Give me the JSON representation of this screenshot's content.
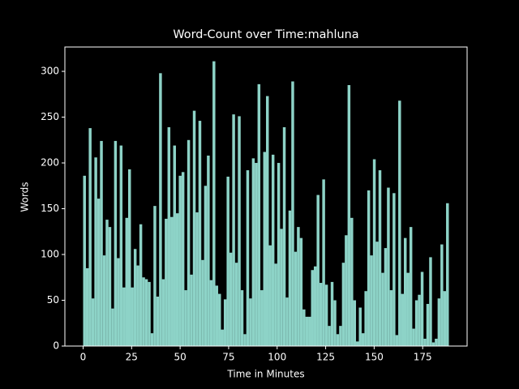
{
  "chart_data": {
    "type": "histogram",
    "title": "Word-Count over Time:mahluna",
    "xlabel": "Time in Minutes",
    "ylabel": "Words",
    "color": "#8dd3c7",
    "bins": [
      0,
      1.45,
      2.9,
      4.35,
      5.8,
      7.25,
      8.7,
      10.15,
      11.6,
      13.05,
      14.5,
      15.95,
      17.4,
      18.85,
      20.3,
      21.75,
      23.2,
      24.65,
      26.1,
      27.55,
      29,
      30.45,
      31.9,
      33.35,
      34.8,
      36.25,
      37.7,
      39.15,
      40.6,
      42.05,
      43.5,
      44.95,
      46.4,
      47.85,
      49.3,
      50.75,
      52.2,
      53.65,
      55.1,
      56.55,
      58,
      59.45,
      60.9,
      62.35,
      63.8,
      65.25,
      66.7,
      68.15,
      69.6,
      71.05,
      72.5,
      73.95,
      75.4,
      76.85,
      78.3,
      79.75,
      81.2,
      82.65,
      84.1,
      85.55,
      87,
      88.45,
      89.9,
      91.35,
      92.8,
      94.25,
      95.7,
      97.15,
      98.6,
      100.05,
      101.5,
      102.95,
      104.4,
      105.85,
      107.3,
      108.75,
      110.2,
      111.65,
      113.1,
      114.55,
      116,
      117.45,
      118.9,
      120.35,
      121.8,
      123.25,
      124.7,
      126.15,
      127.6,
      129.05,
      130.5,
      131.95,
      133.4,
      134.85,
      136.3,
      137.75,
      139.2,
      140.65,
      142.1,
      143.55,
      145,
      146.45,
      147.9,
      149.35,
      150.8,
      152.25,
      153.7,
      155.15,
      156.6,
      158.05,
      159.5,
      160.95,
      162.4,
      163.85,
      165.3,
      166.75,
      168.2,
      169.65,
      171.1,
      172.55,
      174,
      175.45,
      176.9,
      178.35,
      179.8,
      181.25,
      182.7,
      184.15,
      185.6,
      187.05,
      188.5
    ],
    "values": [
      186,
      85,
      238,
      52,
      206,
      161,
      224,
      99,
      138,
      130,
      41,
      224,
      96,
      219,
      64,
      140,
      193,
      64,
      106,
      88,
      133,
      75,
      73,
      70,
      14,
      153,
      54,
      298,
      73,
      139,
      239,
      141,
      219,
      145,
      186,
      190,
      61,
      225,
      78,
      257,
      146,
      246,
      94,
      175,
      208,
      72,
      311,
      66,
      57,
      18,
      51,
      185,
      102,
      253,
      91,
      251,
      61,
      13,
      192,
      52,
      205,
      200,
      286,
      61,
      212,
      273,
      110,
      209,
      90,
      200,
      128,
      239,
      53,
      148,
      289,
      103,
      130,
      118,
      40,
      32,
      32,
      83,
      87,
      165,
      69,
      182,
      67,
      22,
      70,
      50,
      13,
      22,
      91,
      121,
      285,
      140,
      50,
      5,
      42,
      14,
      60,
      170,
      99,
      204,
      114,
      192,
      80,
      107,
      173,
      61,
      167,
      12,
      268,
      57,
      118,
      80,
      130,
      19,
      50,
      56,
      81,
      8,
      46,
      97,
      4,
      8,
      52,
      111,
      60,
      156
    ],
    "xlim": [
      -9.4,
      197.9
    ],
    "ylim": [
      0,
      326.6
    ],
    "xticks": [
      0,
      25,
      50,
      75,
      100,
      125,
      150,
      175
    ],
    "yticks": [
      0,
      50,
      100,
      150,
      200,
      250,
      300
    ]
  }
}
